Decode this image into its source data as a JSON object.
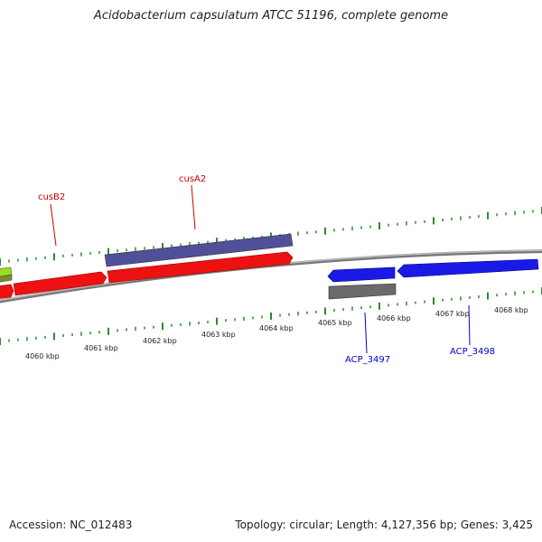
{
  "title": "Acidobacterium capsulatum ATCC 51196, complete genome",
  "footer": {
    "accession": "Accession: NC_012483",
    "summary": "Topology: circular; Length: 4,127,356 bp; Genes: 3,425"
  },
  "colors": {
    "backbone": "#8a8a8a",
    "tick": "#2e8b2e",
    "red_gene": "#ee1111",
    "purple_gene": "#50509a",
    "blue_gene": "#1a1ae6",
    "gray_gene": "#6a6a6a",
    "green_gene": "#99dd22",
    "red_label": "#cc0000",
    "blue_label": "#0000cc"
  },
  "scale_labels": [
    {
      "kbp": 4060,
      "label": "4060 kbp"
    },
    {
      "kbp": 4061,
      "label": "4061 kbp"
    },
    {
      "kbp": 4062,
      "label": "4062 kbp"
    },
    {
      "kbp": 4063,
      "label": "4063 kbp"
    },
    {
      "kbp": 4064,
      "label": "4064 kbp"
    },
    {
      "kbp": 4065,
      "label": "4065 kbp"
    },
    {
      "kbp": 4066,
      "label": "4066 kbp"
    },
    {
      "kbp": 4067,
      "label": "4067 kbp"
    },
    {
      "kbp": 4068,
      "label": "4068 kbp"
    }
  ],
  "gene_labels": [
    {
      "name": "cusB2",
      "strand": "forward"
    },
    {
      "name": "cusA2",
      "strand": "forward"
    },
    {
      "name": "ACP_3497",
      "strand": "reverse"
    },
    {
      "name": "ACP_3498",
      "strand": "reverse"
    }
  ]
}
